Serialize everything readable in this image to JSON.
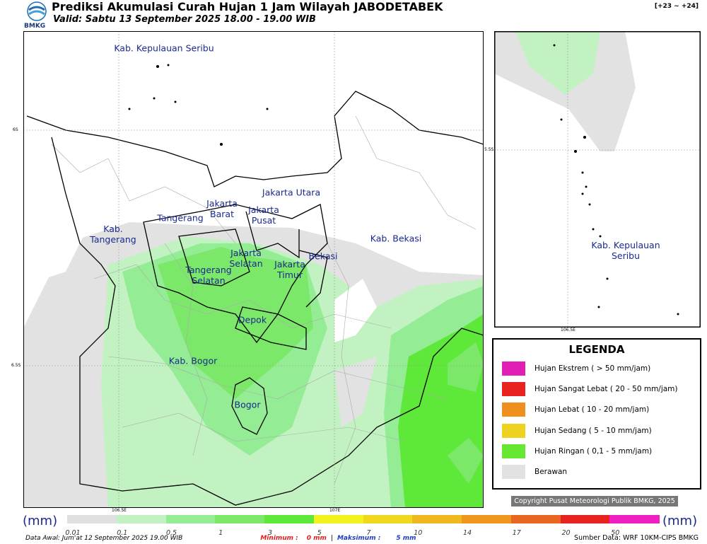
{
  "header": {
    "logo": "BMKG",
    "title": "Prediksi Akumulasi Curah Hujan 1 Jam Wilayah JABODETABEK",
    "subtitle": "Valid: Sabtu 13 September 2025 18.00 - 19.00 WIB",
    "range": "[+23 ~ +24]"
  },
  "map": {
    "labels": [
      "Kab. Kepulauan Seribu",
      "Jakarta Utara",
      "Jakarta Barat",
      "Jakarta Pusat",
      "Tangerang",
      "Kab. Tangerang",
      "Jakarta Selatan",
      "Tangerang Selatan",
      "Jakarta Timur",
      "Bekasi",
      "Kab. Bekasi",
      "Depok",
      "Kab. Bogor",
      "Bogor"
    ],
    "lat_ticks": [
      "6S",
      "6.5S"
    ],
    "lon_ticks": [
      "106.5E",
      "107E"
    ]
  },
  "inset": {
    "label": "Kab. Kepulauan Seribu",
    "lat_tick": "5.5S",
    "lon_tick": "106.5E"
  },
  "legend": {
    "title": "LEGENDA",
    "items": [
      {
        "label": "Hujan Ekstrem ( > 50 mm/jam)",
        "color": "#e21fb5"
      },
      {
        "label": "Hujan Sangat Lebat ( 20 - 50 mm/jam)",
        "color": "#e8231f"
      },
      {
        "label": "Hujan Lebat ( 10 - 20 mm/jam)",
        "color": "#ef8f1f"
      },
      {
        "label": "Hujan Sedang ( 5 - 10 mm/jam)",
        "color": "#efd21f"
      },
      {
        "label": "Hujan Ringan ( 0,1 - 5 mm/jam)",
        "color": "#66e832"
      },
      {
        "label": "Berawan",
        "color": "#e2e2e2"
      }
    ]
  },
  "copyright": "Copyright Pusat Meteorologi Publik BMKG, 2025",
  "colorbar": {
    "unit": "(mm)",
    "ticks": [
      0.01,
      0.1,
      0.5,
      1,
      3,
      5,
      7,
      10,
      14,
      17,
      20,
      50
    ],
    "colors": [
      "#e0e0e0",
      "#c2f2c2",
      "#94ec94",
      "#7ce86a",
      "#5ee83a",
      "#f2f21f",
      "#f2d71f",
      "#f0b81f",
      "#ef961f",
      "#e8661f",
      "#e8231f",
      "#f01fc0"
    ]
  },
  "footer": {
    "data_awal": "Data Awal: Jum'at 12 September 2025 19.00 WIB",
    "min_label": "Minimum :",
    "min_value": "0 mm",
    "separator": "|",
    "max_label": "Maksimum :",
    "max_value": "5 mm",
    "source": "Sumber Data: WRF 10KM-CIPS BMKG"
  }
}
